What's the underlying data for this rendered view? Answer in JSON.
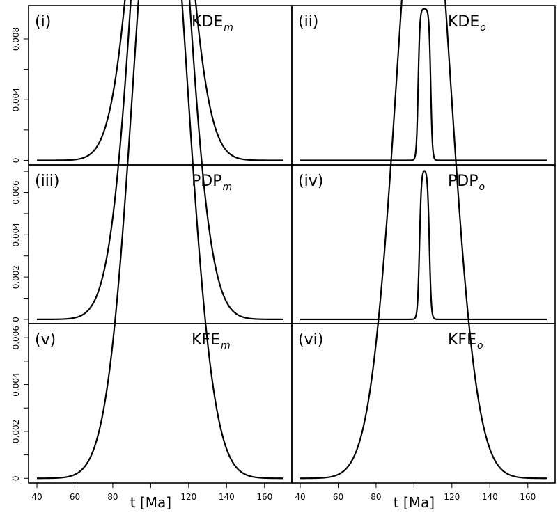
{
  "chart_data": {
    "type": "line",
    "layout": "3x2 grid of density panels sharing x axis",
    "x_axis": {
      "title": "t [Ma]",
      "range": [
        40,
        170
      ],
      "ticks": [
        40,
        60,
        80,
        100,
        120,
        140,
        160
      ],
      "tick_labels": [
        "40",
        "60",
        "80",
        "",
        "120",
        "140",
        "160"
      ]
    },
    "panels": [
      {
        "tag": "(i)",
        "name": "KDE",
        "subscript": "m",
        "shape": "gaussian",
        "mu": 105,
        "sigma": 12.5,
        "ylim": [
          -0.0003,
          0.0102
        ],
        "yticks": [
          0,
          0.002,
          0.004,
          0.006,
          0.008
        ],
        "ytick_labels": [
          "0",
          "",
          "0.004",
          "",
          "0.008"
        ]
      },
      {
        "tag": "(ii)",
        "name": "KDE",
        "subscript": "o",
        "shape": "flat-top",
        "mu": 105.5,
        "half_width": 3.3,
        "edge": 1.0,
        "peak": 0.01,
        "ylim": [
          -0.0003,
          0.0102
        ],
        "yticks": [
          0,
          0.002,
          0.004,
          0.006,
          0.008
        ],
        "ytick_labels": [
          "0",
          "",
          "0.004",
          "",
          "0.008"
        ]
      },
      {
        "tag": "(iii)",
        "name": "PDP",
        "subscript": "m",
        "shape": "gaussian",
        "mu": 105,
        "sigma": 13,
        "ylim": [
          -0.0002,
          0.0073
        ],
        "yticks": [
          0,
          0.001,
          0.002,
          0.003,
          0.004,
          0.005,
          0.006,
          0.007
        ],
        "ytick_labels": [
          "0",
          "",
          "0.002",
          "",
          "0.004",
          "",
          "0.006",
          ""
        ]
      },
      {
        "tag": "(iv)",
        "name": "PDP",
        "subscript": "o",
        "shape": "flat-top",
        "mu": 105.5,
        "half_width": 2.6,
        "edge": 1.1,
        "peak": 0.0071,
        "ylim": [
          -0.0002,
          0.0073
        ],
        "yticks": [
          0,
          0.001,
          0.002,
          0.003,
          0.004,
          0.005,
          0.006,
          0.007
        ],
        "ytick_labels": [
          "0",
          "",
          "0.002",
          "",
          "0.004",
          "",
          "0.006",
          ""
        ]
      },
      {
        "tag": "(v)",
        "name": "KFE",
        "subscript": "m",
        "shape": "gaussian",
        "mu": 105,
        "sigma": 14,
        "ylim": [
          -0.0002,
          0.0066
        ],
        "yticks": [
          0,
          0.001,
          0.002,
          0.003,
          0.004,
          0.005,
          0.006
        ],
        "ytick_labels": [
          "0",
          "",
          "0.002",
          "",
          "0.004",
          "",
          "0.006"
        ]
      },
      {
        "tag": "(vi)",
        "name": "KFE",
        "subscript": "o",
        "shape": "gaussian",
        "mu": 105,
        "sigma": 14,
        "ylim": [
          -0.0002,
          0.0066
        ],
        "yticks": [
          0,
          0.001,
          0.002,
          0.003,
          0.004,
          0.005,
          0.006
        ],
        "ytick_labels": [
          "0",
          "",
          "0.002",
          "",
          "0.004",
          "",
          "0.006"
        ]
      }
    ]
  }
}
